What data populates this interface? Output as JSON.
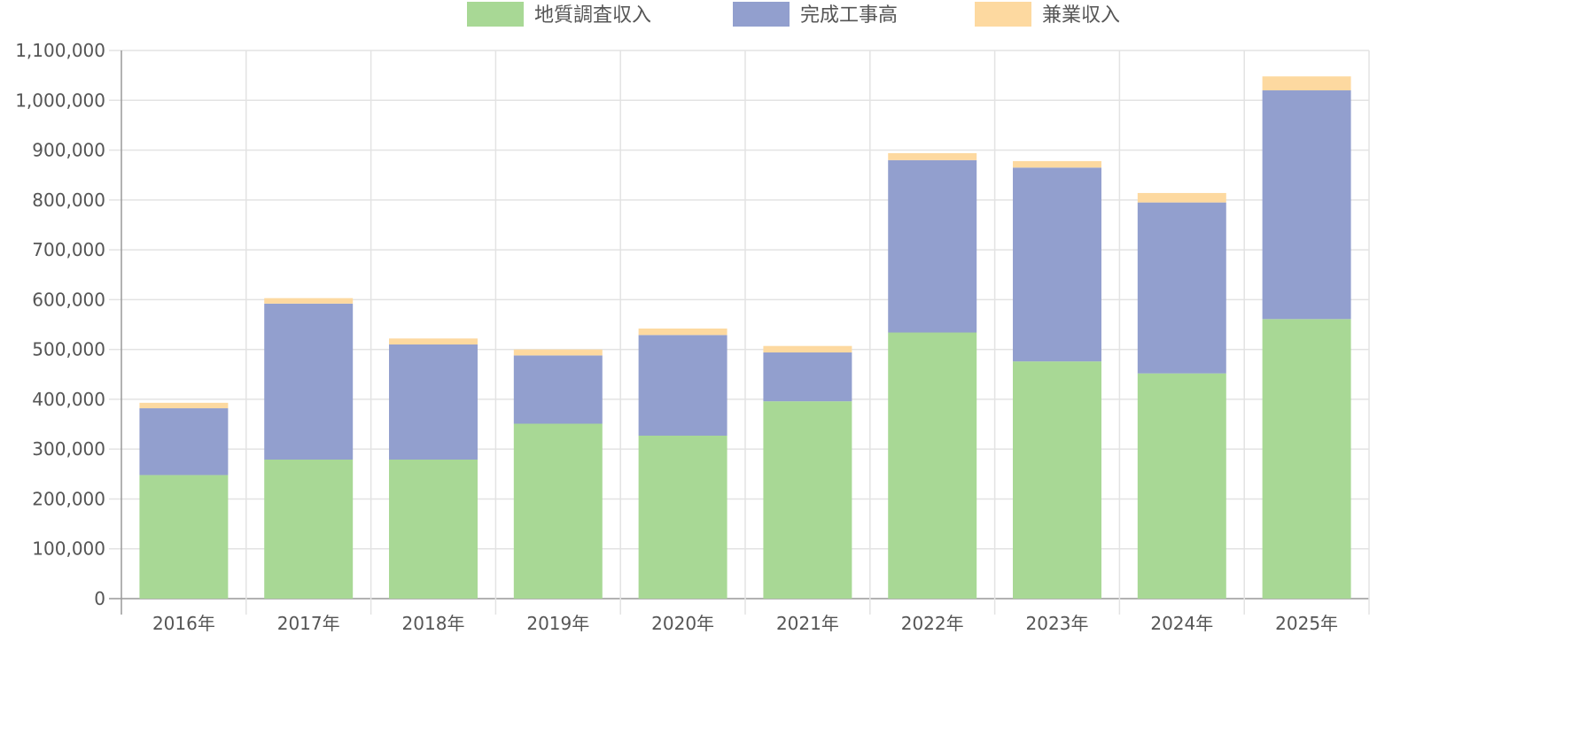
{
  "chart_data": {
    "type": "bar",
    "stacked": true,
    "categories": [
      "2016年",
      "2017年",
      "2018年",
      "2019年",
      "2020年",
      "2021年",
      "2022年",
      "2023年",
      "2024年",
      "2025年"
    ],
    "series": [
      {
        "name": "地質調査収入",
        "color": "#a8d895",
        "values": [
          248000,
          279000,
          279000,
          351000,
          327000,
          396000,
          534000,
          476000,
          452000,
          561000
        ]
      },
      {
        "name": "完成工事高",
        "color": "#929fce",
        "values": [
          134000,
          313000,
          231000,
          137000,
          202000,
          98000,
          346000,
          389000,
          343000,
          459000
        ]
      },
      {
        "name": "兼業収入",
        "color": "#fdd9a0",
        "values": [
          11000,
          11000,
          12000,
          12000,
          13000,
          13000,
          14000,
          13000,
          19000,
          28000
        ]
      }
    ],
    "ylim": [
      0,
      1100000
    ],
    "yticks": [
      "0",
      "100,000",
      "200,000",
      "300,000",
      "400,000",
      "500,000",
      "600,000",
      "700,000",
      "800,000",
      "900,000",
      "1,000,000",
      "1,100,000"
    ],
    "ytick_values": [
      0,
      100000,
      200000,
      300000,
      400000,
      500000,
      600000,
      700000,
      800000,
      900000,
      1000000,
      1100000
    ],
    "grid": true,
    "legend_position": "top-center",
    "title": "",
    "xlabel": "",
    "ylabel": ""
  }
}
